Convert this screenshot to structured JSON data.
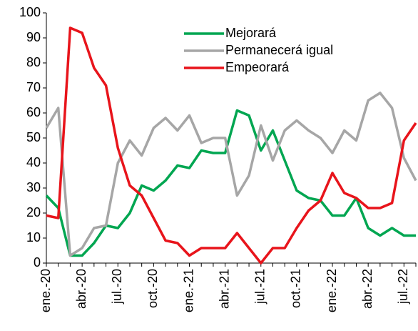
{
  "chart_data": {
    "type": "line",
    "categories": [
      "ene.-20",
      null,
      null,
      "abr.-20",
      null,
      null,
      "jul.-20",
      null,
      null,
      "oct.-20",
      null,
      null,
      "ene.-21",
      null,
      null,
      "abr.-21",
      null,
      null,
      "jul.-21",
      null,
      null,
      "oct.-21",
      null,
      null,
      "ene.-22",
      null,
      null,
      "abr.-22",
      null,
      null,
      "jul.-22",
      null
    ],
    "series": [
      {
        "name": "Mejorará",
        "color": "#00a651",
        "values": [
          27,
          22,
          3,
          3,
          8,
          15,
          14,
          20,
          31,
          29,
          33,
          39,
          38,
          45,
          44,
          44,
          61,
          59,
          45,
          53,
          41,
          29,
          26,
          25,
          19,
          19,
          26,
          14,
          11,
          14,
          11,
          11
        ]
      },
      {
        "name": "Permanecerá igual",
        "color": "#a6a6a6",
        "values": [
          54,
          62,
          3,
          6,
          14,
          15,
          40,
          49,
          43,
          54,
          58,
          53,
          59,
          48,
          50,
          50,
          27,
          35,
          55,
          41,
          53,
          57,
          53,
          50,
          44,
          53,
          49,
          65,
          68,
          62,
          42,
          33
        ]
      },
      {
        "name": "Empeorará",
        "color": "#e8141b",
        "values": [
          19,
          18,
          94,
          92,
          78,
          71,
          46,
          31,
          27,
          18,
          9,
          8,
          3,
          6,
          6,
          6,
          12,
          6,
          0,
          6,
          6,
          14,
          21,
          25,
          36,
          28,
          26,
          22,
          22,
          24,
          49,
          56
        ]
      }
    ],
    "ylim": [
      0,
      100
    ],
    "yticks": [
      0,
      10,
      20,
      30,
      40,
      50,
      60,
      70,
      80,
      90,
      100
    ],
    "legend": "top"
  }
}
